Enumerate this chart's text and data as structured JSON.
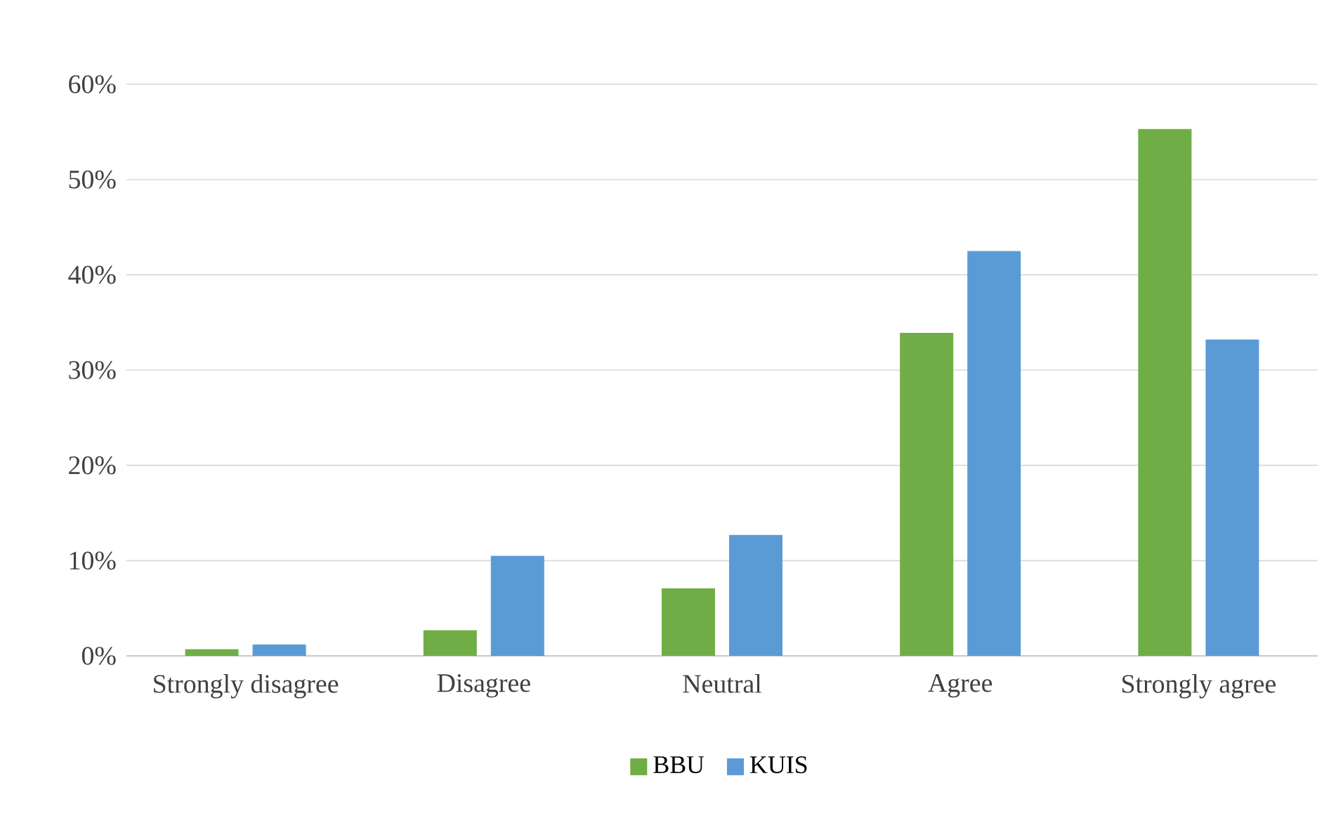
{
  "chart_data": {
    "type": "bar",
    "categories": [
      "Strongly disagree",
      "Disagree",
      "Neutral",
      "Agree",
      "Strongly agree"
    ],
    "series": [
      {
        "name": "BBU",
        "color": "#70ad47",
        "values": [
          0.7,
          2.7,
          7.1,
          33.9,
          55.3
        ]
      },
      {
        "name": "KUIS",
        "color": "#5b9bd5",
        "values": [
          1.2,
          10.5,
          12.7,
          42.5,
          33.2
        ]
      }
    ],
    "ylim": [
      0,
      60
    ],
    "yticks": [
      {
        "value": 0,
        "label": "0%"
      },
      {
        "value": 10,
        "label": "10%"
      },
      {
        "value": 20,
        "label": "20%"
      },
      {
        "value": 30,
        "label": "30%"
      },
      {
        "value": 40,
        "label": "40%"
      },
      {
        "value": 50,
        "label": "50%"
      },
      {
        "value": 60,
        "label": "60%"
      }
    ],
    "grid": "y",
    "legend": "bottom"
  }
}
